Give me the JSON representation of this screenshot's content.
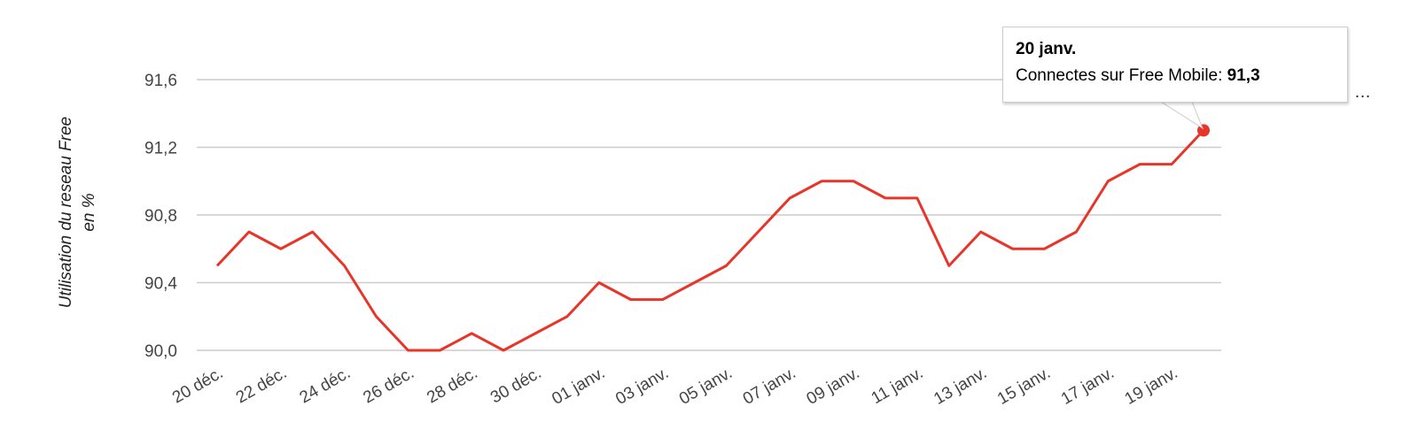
{
  "chart_data": {
    "type": "line",
    "ylabel": "Utilisation du reseau Free en %",
    "ylim": [
      90.0,
      91.6
    ],
    "yticks": [
      "90,0",
      "90,4",
      "90,8",
      "91,2",
      "91,6"
    ],
    "ytick_values": [
      90.0,
      90.4,
      90.8,
      91.2,
      91.6
    ],
    "grid": true,
    "xtick_labels": [
      "20 déc.",
      "22 déc.",
      "24 déc.",
      "26 déc.",
      "28 déc.",
      "30 déc.",
      "01 janv.",
      "03 janv.",
      "05 janv.",
      "07 janv.",
      "09 janv.",
      "11 janv.",
      "13 janv.",
      "15 janv.",
      "17 janv.",
      "19 janv."
    ],
    "series": [
      {
        "name": "Connectes sur Free Mobile",
        "color": "#e8352a",
        "x": [
          "20 déc.",
          "21 déc.",
          "22 déc.",
          "23 déc.",
          "24 déc.",
          "25 déc.",
          "26 déc.",
          "27 déc.",
          "28 déc.",
          "29 déc.",
          "30 déc.",
          "31 déc.",
          "01 janv.",
          "02 janv.",
          "03 janv.",
          "04 janv.",
          "05 janv.",
          "06 janv.",
          "07 janv.",
          "08 janv.",
          "09 janv.",
          "10 janv.",
          "11 janv.",
          "12 janv.",
          "13 janv.",
          "14 janv.",
          "15 janv.",
          "16 janv.",
          "17 janv.",
          "18 janv.",
          "19 janv.",
          "20 janv."
        ],
        "values": [
          90.5,
          90.7,
          90.6,
          90.7,
          90.5,
          90.2,
          90.0,
          90.0,
          90.1,
          90.0,
          90.1,
          90.2,
          90.4,
          90.3,
          90.3,
          90.4,
          90.5,
          90.7,
          90.9,
          91.0,
          91.0,
          90.9,
          90.9,
          90.5,
          90.7,
          90.6,
          90.6,
          90.7,
          91.0,
          91.1,
          91.1,
          91.3
        ]
      }
    ],
    "legend": "top-right",
    "legend_text": "…"
  },
  "tooltip": {
    "title": "20 janv.",
    "series_label": "Connectes sur Free Mobile:",
    "value": "91,3"
  }
}
